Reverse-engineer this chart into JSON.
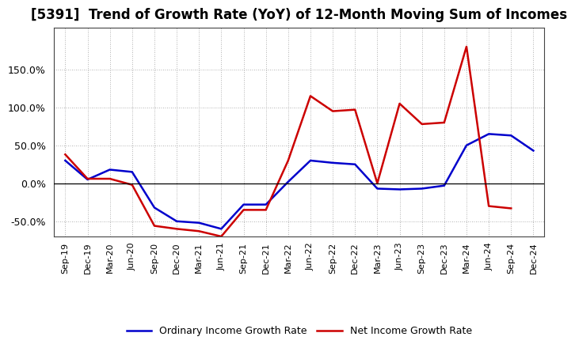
{
  "title": "[5391]  Trend of Growth Rate (YoY) of 12-Month Moving Sum of Incomes",
  "x_labels": [
    "Sep-19",
    "Dec-19",
    "Mar-20",
    "Jun-20",
    "Sep-20",
    "Dec-20",
    "Mar-21",
    "Jun-21",
    "Sep-21",
    "Dec-21",
    "Mar-22",
    "Jun-22",
    "Sep-22",
    "Dec-22",
    "Mar-23",
    "Jun-23",
    "Sep-23",
    "Dec-23",
    "Mar-24",
    "Jun-24",
    "Sep-24",
    "Dec-24"
  ],
  "ordinary_income": [
    0.3,
    0.05,
    0.18,
    0.15,
    -0.32,
    -0.5,
    -0.52,
    -0.6,
    -0.28,
    -0.28,
    0.02,
    0.3,
    0.27,
    0.25,
    -0.07,
    -0.08,
    -0.07,
    -0.03,
    0.5,
    0.65,
    0.63,
    0.43
  ],
  "net_income": [
    0.38,
    0.06,
    0.06,
    -0.02,
    -0.56,
    -0.6,
    -0.63,
    -0.7,
    -0.35,
    -0.35,
    0.3,
    1.15,
    0.95,
    0.97,
    0.0,
    1.05,
    0.78,
    0.8,
    1.8,
    -0.3,
    -0.33,
    null
  ],
  "ordinary_color": "#0000cc",
  "net_color": "#cc0000",
  "background_color": "#ffffff",
  "grid_color": "#999999",
  "ylim": [
    -0.7,
    2.05
  ],
  "yticks": [
    -0.5,
    0.0,
    0.5,
    1.0,
    1.5
  ],
  "ytick_labels": [
    "-50.0%",
    "0.0%",
    "50.0%",
    "100.0%",
    "150.0%"
  ],
  "legend_ordinary": "Ordinary Income Growth Rate",
  "legend_net": "Net Income Growth Rate",
  "title_fontsize": 12,
  "tick_fontsize": 9,
  "legend_fontsize": 9
}
